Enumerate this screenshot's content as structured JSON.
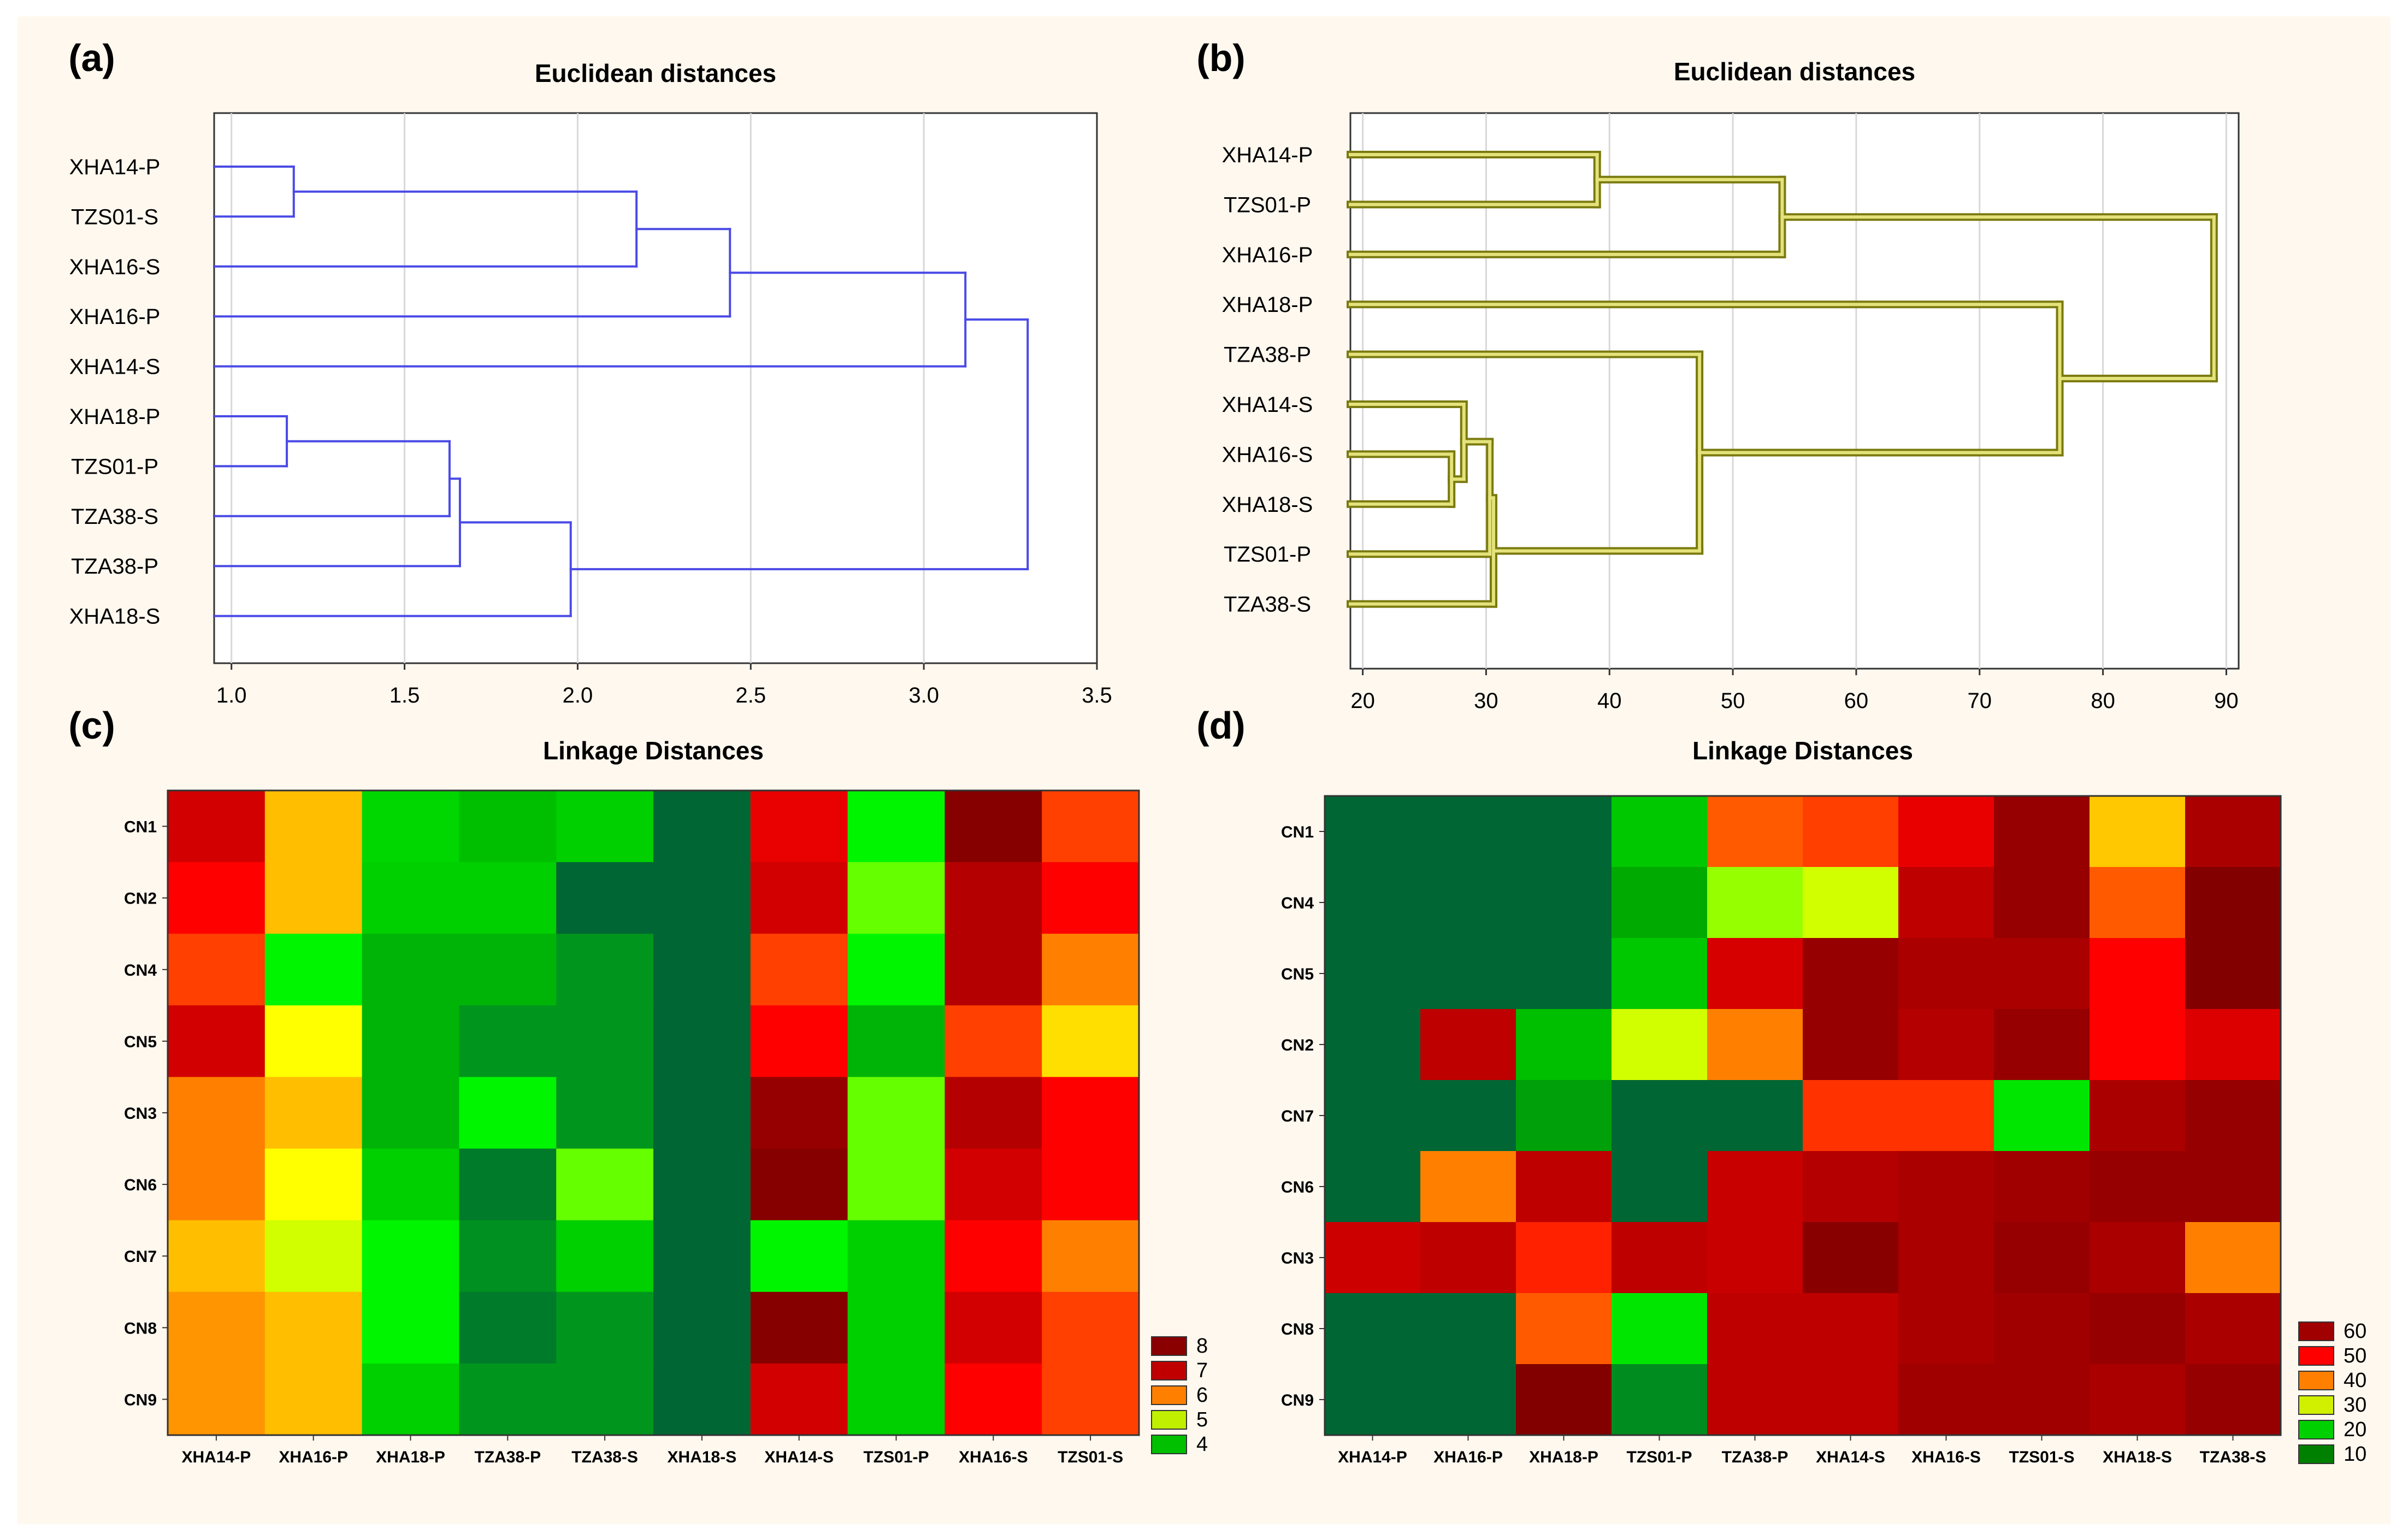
{
  "figure_bg": "#FEF8EF",
  "panel_labels": [
    "(a)",
    "(b)",
    "(c)",
    "(d)"
  ],
  "chart_data": [
    {
      "type": "dendrogram",
      "panel": "(a)",
      "title": "Euclidean distances",
      "xlim": [
        0.95,
        3.5
      ],
      "xticks": [
        1.0,
        1.5,
        2.0,
        2.5,
        3.0,
        3.5
      ],
      "tick_labels": [
        "1.0",
        "1.5",
        "2.0",
        "2.5",
        "3.0",
        "3.5"
      ],
      "grid": true,
      "line_color": "#4A4AE6",
      "labels": [
        "XHA14-P",
        "TZS01-S",
        "XHA16-S",
        "XHA16-P",
        "XHA14-S",
        "XHA18-P",
        "TZS01-P",
        "TZA38-S",
        "TZA38-P",
        "XHA18-S"
      ],
      "merges": [
        [
          0,
          1,
          1.18
        ],
        [
          5,
          6,
          1.16
        ],
        [
          11,
          7,
          1.63
        ],
        [
          12,
          8,
          1.66
        ],
        [
          10,
          2,
          2.17
        ],
        [
          14,
          3,
          2.44
        ],
        [
          13,
          9,
          1.98
        ],
        [
          15,
          4,
          3.12
        ],
        [
          17,
          16,
          3.3
        ]
      ]
    },
    {
      "type": "dendrogram",
      "panel": "(b)",
      "title": "Euclidean distances",
      "xlim": [
        19,
        91
      ],
      "xticks": [
        20,
        30,
        40,
        50,
        60,
        70,
        80,
        90
      ],
      "tick_labels": [
        "20",
        "30",
        "40",
        "50",
        "60",
        "70",
        "80",
        "90"
      ],
      "grid": true,
      "line_color": "#7A7A10",
      "line_fill": "#E4E27A",
      "labels": [
        "XHA14-P",
        "TZS01-P",
        "XHA16-P",
        "XHA18-P",
        "TZA38-P",
        "XHA14-S",
        "XHA16-S",
        "XHA18-S",
        "TZS01-P",
        "TZA38-S"
      ],
      "merges": [
        [
          0,
          1,
          39
        ],
        [
          10,
          2,
          54
        ],
        [
          6,
          7,
          27.2
        ],
        [
          5,
          12,
          28.2
        ],
        [
          13,
          8,
          30.3
        ],
        [
          14,
          9,
          30.6
        ],
        [
          4,
          15,
          47.3
        ],
        [
          3,
          16,
          76.5
        ],
        [
          11,
          17,
          89
        ]
      ]
    },
    {
      "type": "heatmap",
      "panel": "(c)",
      "title": "Linkage Distances",
      "columns": [
        "XHA14-P",
        "XHA16-P",
        "XHA18-P",
        "TZA38-P",
        "TZA38-S",
        "XHA18-S",
        "XHA14-S",
        "TZS01-P",
        "XHA16-S",
        "TZS01-S"
      ],
      "rows": [
        "CN1",
        "CN2",
        "CN4",
        "CN5",
        "CN3",
        "CN6",
        "CN7",
        "CN8",
        "CN9"
      ],
      "values": [
        [
          7.1,
          5.9,
          4.6,
          4.3,
          4.5,
          3.2,
          7.0,
          4.9,
          7.9,
          6.5
        ],
        [
          6.9,
          5.9,
          4.5,
          4.5,
          3.2,
          3.2,
          7.1,
          5.1,
          7.3,
          6.9
        ],
        [
          6.5,
          4.9,
          4.2,
          4.2,
          3.9,
          3.2,
          6.5,
          4.9,
          7.3,
          6.2
        ],
        [
          7.1,
          5.5,
          4.2,
          3.9,
          3.9,
          3.2,
          6.9,
          4.2,
          6.5,
          5.7
        ],
        [
          6.2,
          5.9,
          4.2,
          4.9,
          3.9,
          3.2,
          7.5,
          5.1,
          7.3,
          6.9
        ],
        [
          6.2,
          5.5,
          4.5,
          3.5,
          5.1,
          3.2,
          7.9,
          5.1,
          7.1,
          6.9
        ],
        [
          5.9,
          5.3,
          4.9,
          3.8,
          4.5,
          3.2,
          4.9,
          4.5,
          6.9,
          6.2
        ],
        [
          6.1,
          5.9,
          4.9,
          3.5,
          3.9,
          3.2,
          7.9,
          4.5,
          7.1,
          6.5
        ],
        [
          6.1,
          5.9,
          4.5,
          3.9,
          3.9,
          3.2,
          7.1,
          4.5,
          6.9,
          6.5
        ]
      ],
      "legend": {
        "labels": [
          "8",
          "7",
          "6",
          "5",
          "4"
        ],
        "colors": [
          "#8A0000",
          "#C00000",
          "#FF8000",
          "#C0F000",
          "#00C000"
        ]
      }
    },
    {
      "type": "heatmap",
      "panel": "(d)",
      "title": "Linkage Distances",
      "columns": [
        "XHA14-P",
        "XHA16-P",
        "XHA18-P",
        "TZS01-P",
        "TZA38-P",
        "XHA14-S",
        "XHA16-S",
        "TZS01-S",
        "XHA18-S",
        "TZA38-S"
      ],
      "rows": [
        "CN1",
        "CN4",
        "CN5",
        "CN2",
        "CN7",
        "CN6",
        "CN3",
        "CN8",
        "CN9"
      ],
      "values": [
        [
          6,
          6,
          6,
          18,
          44,
          46,
          52,
          62,
          36,
          60
        ],
        [
          6,
          6,
          6,
          15,
          28,
          32,
          58,
          62,
          44,
          65
        ],
        [
          6,
          6,
          6,
          18,
          54,
          62,
          60,
          60,
          50,
          65
        ],
        [
          6,
          58,
          17,
          32,
          41,
          62,
          59,
          62,
          50,
          53
        ],
        [
          6,
          6,
          14,
          6,
          6,
          47,
          47,
          22,
          60,
          62
        ],
        [
          6,
          41,
          58,
          6,
          57,
          59,
          60,
          61,
          62,
          62
        ],
        [
          56,
          58,
          48,
          58,
          57,
          64,
          60,
          62,
          60,
          41
        ],
        [
          6,
          6,
          44,
          22,
          58,
          58,
          60,
          61,
          62,
          60
        ],
        [
          6,
          6,
          65,
          12,
          58,
          58,
          61,
          61,
          60,
          62
        ]
      ],
      "legend": {
        "labels": [
          "60",
          "50",
          "40",
          "30",
          "20",
          "10"
        ],
        "colors": [
          "#A00000",
          "#FF0000",
          "#FF8000",
          "#D0F000",
          "#00D000",
          "#008000"
        ]
      }
    }
  ]
}
